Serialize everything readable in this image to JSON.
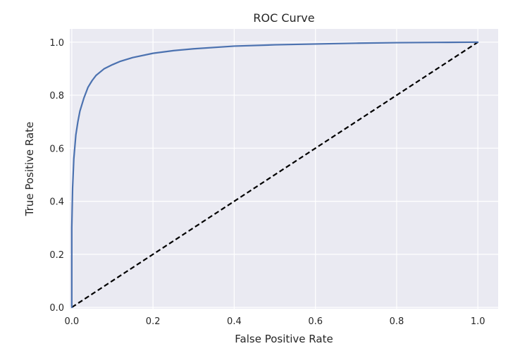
{
  "chart_data": {
    "type": "line",
    "title": "ROC Curve",
    "xlabel": "False Positive Rate",
    "ylabel": "True Positive Rate",
    "xlim": [
      -0.005,
      1.05
    ],
    "ylim": [
      -0.005,
      1.05
    ],
    "xticks": [
      "0.0",
      "0.2",
      "0.4",
      "0.6",
      "0.8",
      "1.0"
    ],
    "yticks": [
      "0.0",
      "0.2",
      "0.4",
      "0.6",
      "0.8",
      "1.0"
    ],
    "grid": true,
    "legend": "none",
    "colors": {
      "background": "#eaeaf2",
      "grid": "#ffffff",
      "roc_line": "#4c72b0",
      "reference_line": "#000000"
    },
    "series": [
      {
        "role": "roc-curve",
        "style": "solid",
        "x": [
          0.0,
          0.0,
          0.002,
          0.005,
          0.01,
          0.015,
          0.02,
          0.03,
          0.04,
          0.05,
          0.06,
          0.08,
          0.1,
          0.12,
          0.15,
          0.2,
          0.25,
          0.3,
          0.4,
          0.5,
          0.6,
          0.7,
          0.8,
          0.9,
          1.0
        ],
        "y": [
          0.0,
          0.3,
          0.45,
          0.56,
          0.65,
          0.7,
          0.74,
          0.79,
          0.83,
          0.855,
          0.875,
          0.9,
          0.915,
          0.928,
          0.942,
          0.958,
          0.968,
          0.975,
          0.985,
          0.99,
          0.993,
          0.996,
          0.998,
          0.999,
          1.0
        ]
      },
      {
        "role": "reference-diagonal",
        "style": "dashed",
        "x": [
          0.0,
          1.0
        ],
        "y": [
          0.0,
          1.0
        ]
      }
    ]
  }
}
